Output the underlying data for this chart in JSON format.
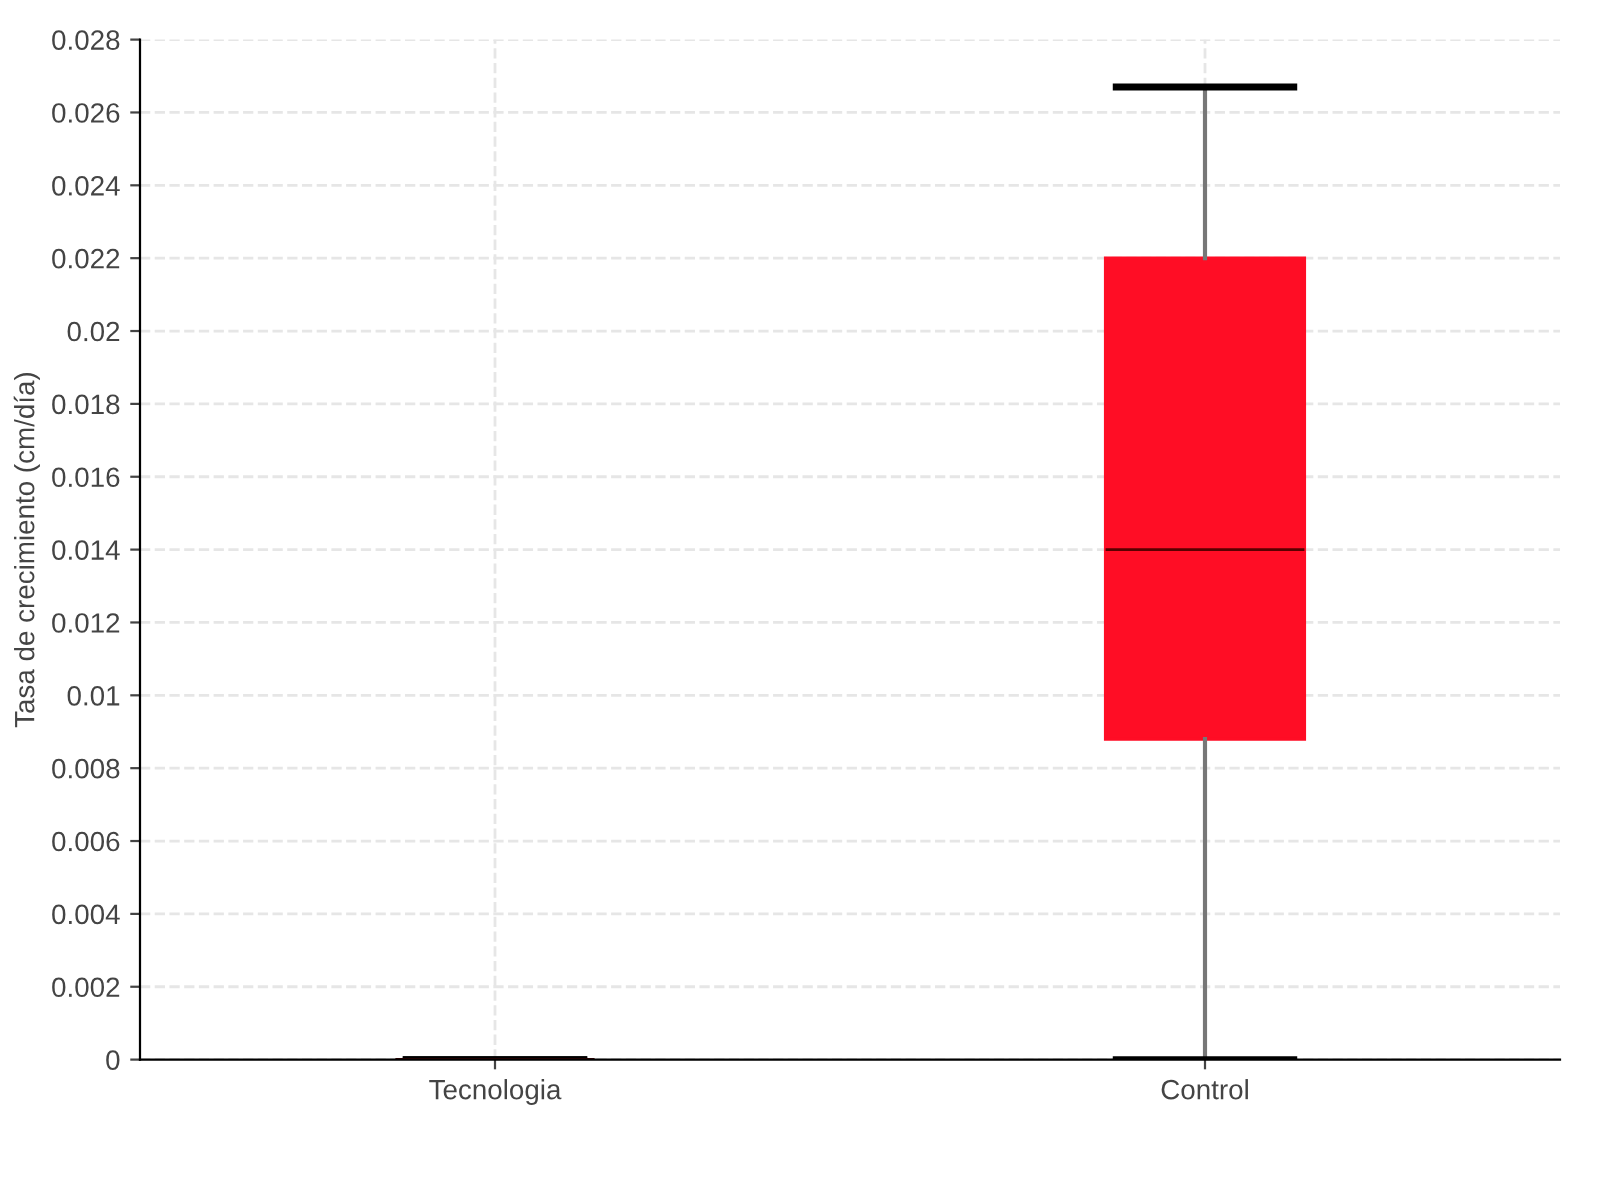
{
  "chart_data": {
    "type": "box",
    "ylabel": "Tasa de crecimiento (cm/día)",
    "categories": [
      "Tecnologia",
      "Control"
    ],
    "series": [
      {
        "colors": [
          "#000000",
          "#ff0d25"
        ],
        "boxes": [
          {
            "low": 0,
            "q1": 0,
            "median": 0,
            "q3": 0,
            "high": 0
          },
          {
            "low": 0,
            "q1": 0.0088,
            "median": 0.014,
            "q3": 0.022,
            "high": 0.0267
          }
        ]
      }
    ],
    "ylim": [
      0,
      0.028
    ],
    "yticks": [
      0,
      0.002,
      0.004,
      0.006,
      0.008,
      0.01,
      0.012,
      0.014,
      0.016,
      0.018,
      0.02,
      0.022,
      0.024,
      0.026,
      0.028
    ],
    "grid": true
  }
}
